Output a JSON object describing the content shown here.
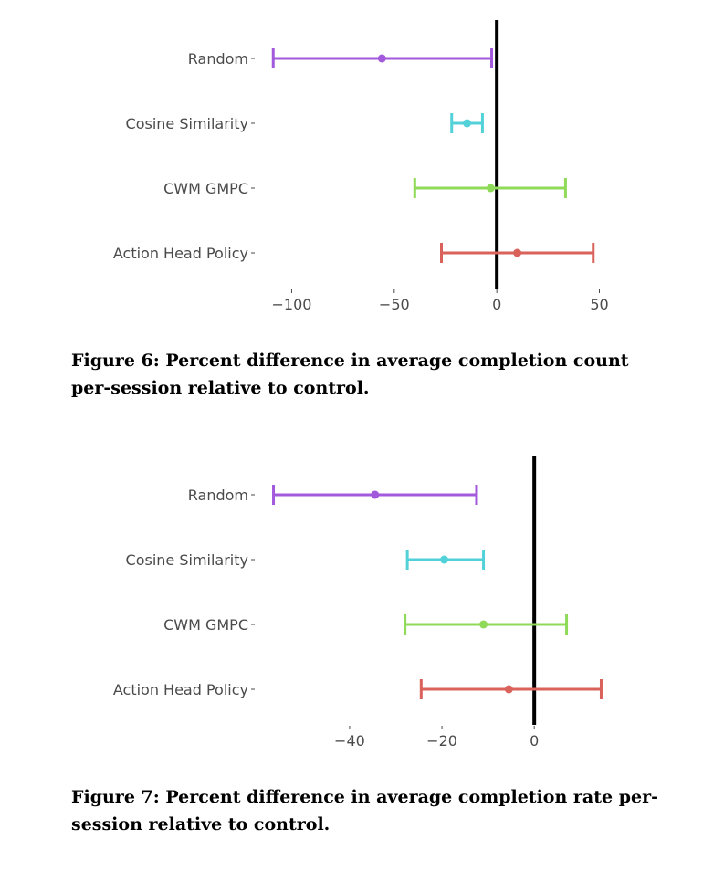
{
  "figures": [
    {
      "caption": "Figure 6: Percent difference in average completion count per-session relative to control.",
      "chart_data": {
        "type": "errorbar",
        "categories": [
          "Random",
          "Cosine Similarity",
          "CWM GMPC",
          "Action Head Policy"
        ],
        "estimates": [
          -56,
          -14.5,
          -3,
          10
        ],
        "lower": [
          -109,
          -22,
          -40,
          -27
        ],
        "upper": [
          -2.5,
          -7,
          33.5,
          47
        ],
        "colors": [
          "#a259dc",
          "#52d1d9",
          "#8fdb59",
          "#d9625a"
        ],
        "xticks": [
          -100,
          -50,
          0,
          50
        ],
        "xtick_labels": [
          "−100",
          "−50",
          "0",
          "50"
        ],
        "reference_line": 0,
        "xlim": [
          -110,
          52
        ]
      }
    },
    {
      "caption": "Figure 7: Percent difference in average completion rate per-session relative to control.",
      "chart_data": {
        "type": "errorbar",
        "categories": [
          "Random",
          "Cosine Similarity",
          "CWM GMPC",
          "Action Head Policy"
        ],
        "estimates": [
          -34.5,
          -19.5,
          -11,
          -5.5
        ],
        "lower": [
          -56.5,
          -27.5,
          -28,
          -24.5
        ],
        "upper": [
          -12.5,
          -11,
          7,
          14.5
        ],
        "colors": [
          "#a259dc",
          "#52d1d9",
          "#8fdb59",
          "#d9625a"
        ],
        "xticks": [
          -40,
          -20,
          0
        ],
        "xtick_labels": [
          "−40",
          "−20",
          "0"
        ],
        "reference_line": 0,
        "xlim": [
          -57,
          15
        ]
      }
    }
  ]
}
